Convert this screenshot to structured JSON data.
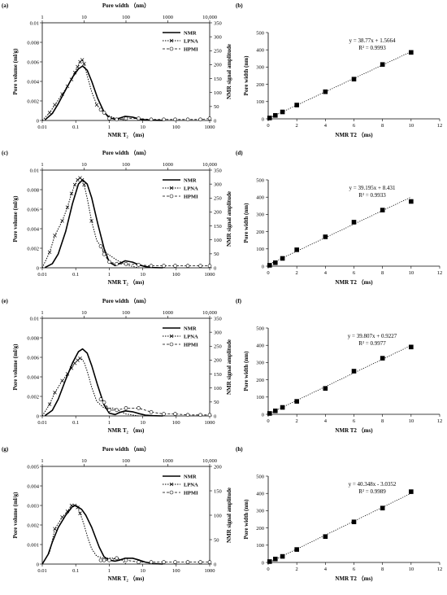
{
  "chart_data": [
    {
      "panel": "(a)",
      "type": "line",
      "top_axis": {
        "label": "Pore width （nm）",
        "ticks": [
          "1",
          "10",
          "100",
          "1000",
          "10,000"
        ],
        "log": true
      },
      "x_axis": {
        "label": "NMR T₂ （ms)",
        "ticks": [
          "0.01",
          "0.1",
          "1",
          "10",
          "100",
          "1000"
        ],
        "log": true,
        "range": [
          0.01,
          1000
        ]
      },
      "y_axis": {
        "label": "Pore volume (ml/g)",
        "ticks": [
          "0",
          "0.002",
          "0.004",
          "0.006",
          "0.008",
          "0.01"
        ],
        "range": [
          0,
          0.01
        ]
      },
      "y2_axis": {
        "label": "NMR signal amplitude",
        "ticks": [
          "0",
          "50",
          "100",
          "150",
          "200",
          "250",
          "300",
          "350"
        ],
        "range": [
          0,
          350
        ]
      },
      "legend": [
        {
          "name": "NMR",
          "style": "solid"
        },
        {
          "name": "LPNA",
          "style": "dotted-x"
        },
        {
          "name": "HPMI",
          "style": "dashed-circle"
        }
      ],
      "series": [
        {
          "name": "NMR",
          "axis": "right",
          "x": [
            0.012,
            0.02,
            0.03,
            0.05,
            0.08,
            0.12,
            0.16,
            0.22,
            0.3,
            0.45,
            0.7,
            1.0,
            1.5,
            2.0,
            3.0,
            5,
            8,
            12,
            20,
            40
          ],
          "values": [
            2,
            25,
            60,
            110,
            155,
            185,
            195,
            180,
            140,
            80,
            30,
            10,
            5,
            8,
            15,
            12,
            5,
            2,
            1,
            0
          ]
        },
        {
          "name": "LPNA",
          "axis": "left",
          "x": [
            1,
            1.5,
            2,
            3,
            4,
            5,
            6,
            7,
            8,
            9,
            10,
            12,
            15,
            20,
            30,
            50,
            80,
            100
          ],
          "values": [
            0,
            0.0008,
            0.0016,
            0.0027,
            0.0035,
            0.0042,
            0.0049,
            0.0055,
            0.006,
            0.0062,
            0.0058,
            0.0045,
            0.003,
            0.0016,
            0.0007,
            0.0003,
            0.0001,
            0
          ],
          "markers": [
            0.0008,
            0.0016,
            0.0027,
            0.0035,
            0.0042,
            0.0049,
            0.0055,
            0.006,
            0.0062,
            0.0058
          ]
        },
        {
          "name": "HPMI",
          "axis": "left",
          "x": [
            25,
            30,
            40,
            60,
            100,
            200,
            400,
            800,
            1500,
            3000,
            6000,
            10000
          ],
          "values": [
            0.0011,
            0.0008,
            0.0002,
            0.0001,
            0.0002,
            0.0002,
            0.0001,
            0.0001,
            0.0001,
            0.0001,
            0.0001,
            0.0002
          ]
        }
      ]
    },
    {
      "panel": "(b)",
      "type": "scatter",
      "x_axis": {
        "label": "NMR T2 （ms)",
        "ticks": [
          "0",
          "2",
          "4",
          "6",
          "8",
          "10",
          "12"
        ],
        "range": [
          0,
          12
        ]
      },
      "y_axis": {
        "label": "Pore width (nm)",
        "ticks": [
          "0",
          "100",
          "200",
          "300",
          "400",
          "500"
        ],
        "range": [
          0,
          500
        ]
      },
      "equation": "y = 38.77x + 1.5664",
      "r2": "R² = 0.9993",
      "slope": 38.77,
      "intercept": 1.5664,
      "points": [
        [
          0.1,
          5
        ],
        [
          0.5,
          20
        ],
        [
          1,
          40
        ],
        [
          2,
          80
        ],
        [
          4,
          157
        ],
        [
          6,
          230
        ],
        [
          8,
          315
        ],
        [
          10,
          385
        ]
      ]
    },
    {
      "panel": "(c)",
      "type": "line",
      "top_axis": {
        "label": "Pore width （nm）",
        "ticks": [
          "1",
          "10",
          "100",
          "1000",
          "10,000"
        ],
        "log": true
      },
      "x_axis": {
        "label": "NMR T₂ （ms)",
        "ticks": [
          "0.01",
          "0.1",
          "1",
          "10",
          "100",
          "1000"
        ],
        "log": true,
        "range": [
          0.01,
          1000
        ]
      },
      "y_axis": {
        "label": "Pore volume (ml/g)",
        "ticks": [
          "0",
          "0.002",
          "0.004",
          "0.006",
          "0.008",
          "0.01"
        ],
        "range": [
          0,
          0.01
        ]
      },
      "y2_axis": {
        "label": "NMR signal amplitude",
        "ticks": [
          "0",
          "50",
          "100",
          "150",
          "200",
          "250",
          "300",
          "350"
        ],
        "range": [
          0,
          350
        ]
      },
      "legend": [
        {
          "name": "NMR",
          "style": "solid"
        },
        {
          "name": "LPNA",
          "style": "dotted-x"
        },
        {
          "name": "HPMI",
          "style": "dashed-circle"
        }
      ],
      "series": [
        {
          "name": "NMR",
          "axis": "right",
          "x": [
            0.012,
            0.02,
            0.03,
            0.05,
            0.08,
            0.12,
            0.16,
            0.22,
            0.3,
            0.45,
            0.7,
            1.0,
            1.5,
            2.0,
            3.0,
            5,
            8,
            12,
            20,
            40
          ],
          "values": [
            1,
            15,
            50,
            130,
            230,
            300,
            315,
            300,
            250,
            160,
            70,
            20,
            8,
            15,
            25,
            20,
            10,
            4,
            1,
            0
          ]
        },
        {
          "name": "LPNA",
          "axis": "left",
          "x": [
            1,
            1.5,
            2,
            3,
            4,
            5,
            6,
            7,
            8,
            9,
            10,
            12,
            15,
            20,
            30,
            40,
            60,
            100,
            200
          ],
          "values": [
            0,
            0.0016,
            0.0033,
            0.0048,
            0.0062,
            0.0076,
            0.0085,
            0.009,
            0.0092,
            0.009,
            0.0085,
            0.007,
            0.0048,
            0.0028,
            0.0017,
            0.0013,
            0.0008,
            0.0003,
            0
          ],
          "markers": [
            0.0016,
            0.0033,
            0.0048,
            0.0062,
            0.0076,
            0.0085,
            0.009,
            0.0092,
            0.009,
            0.0085
          ]
        },
        {
          "name": "HPMI",
          "axis": "left",
          "x": [
            25,
            30,
            40,
            60,
            100,
            200,
            400,
            800,
            1500,
            3000,
            6000,
            10000
          ],
          "values": [
            0.0022,
            0.0014,
            0.0006,
            0.0004,
            0.0004,
            0.0003,
            0.0002,
            0.0002,
            0.0002,
            0.0002,
            0.0002,
            0.0002
          ]
        }
      ]
    },
    {
      "panel": "(d)",
      "type": "scatter",
      "x_axis": {
        "label": "NMR T2 （ms)",
        "ticks": [
          "0",
          "2",
          "4",
          "6",
          "8",
          "10",
          "12"
        ],
        "range": [
          0,
          12
        ]
      },
      "y_axis": {
        "label": "Pore width (nm)",
        "ticks": [
          "0",
          "100",
          "200",
          "300",
          "400",
          "500"
        ],
        "range": [
          0,
          500
        ]
      },
      "equation": "y = 39.195x + 8.431",
      "r2": "R² = 0.9933",
      "slope": 39.195,
      "intercept": 8.431,
      "points": [
        [
          0.1,
          5
        ],
        [
          0.5,
          20
        ],
        [
          1,
          45
        ],
        [
          2,
          95
        ],
        [
          4,
          170
        ],
        [
          6,
          255
        ],
        [
          8,
          325
        ],
        [
          10,
          375
        ]
      ]
    },
    {
      "panel": "(e)",
      "type": "line",
      "top_axis": {
        "label": "Pore width （nm）",
        "ticks": [
          "1",
          "10",
          "100",
          "1000",
          "10,000"
        ],
        "log": true
      },
      "x_axis": {
        "label": "NMR T₂ （ms)",
        "ticks": [
          "0.01",
          "0.1",
          "1",
          "10",
          "100",
          "1000"
        ],
        "log": true,
        "range": [
          0.01,
          1000
        ]
      },
      "y_axis": {
        "label": "Pore volume (ml/g)",
        "ticks": [
          "0",
          "0.002",
          "0.004",
          "0.006",
          "0.008",
          "0.01"
        ],
        "range": [
          0,
          0.01
        ]
      },
      "y2_axis": {
        "label": "NMR signal amplitude",
        "ticks": [
          "0",
          "50",
          "100",
          "150",
          "200",
          "250",
          "300",
          "350"
        ],
        "range": [
          0,
          350
        ]
      },
      "legend": [
        {
          "name": "NMR",
          "style": "solid"
        },
        {
          "name": "LPNA",
          "style": "dotted-x"
        },
        {
          "name": "HPMI",
          "style": "dashed-circle"
        }
      ],
      "series": [
        {
          "name": "NMR",
          "axis": "right",
          "x": [
            0.012,
            0.02,
            0.03,
            0.05,
            0.08,
            0.12,
            0.16,
            0.22,
            0.3,
            0.45,
            0.7,
            1.0,
            1.5,
            2.0,
            3.0,
            5,
            8,
            12,
            20,
            40
          ],
          "values": [
            1,
            20,
            60,
            130,
            190,
            230,
            240,
            225,
            180,
            110,
            40,
            10,
            5,
            12,
            18,
            15,
            8,
            3,
            1,
            0
          ]
        },
        {
          "name": "LPNA",
          "axis": "left",
          "x": [
            1,
            1.5,
            2,
            3,
            4,
            5,
            6,
            7,
            8,
            9,
            10,
            12,
            15,
            20,
            30,
            50,
            80,
            100,
            200
          ],
          "values": [
            0,
            0.0012,
            0.0024,
            0.0036,
            0.0043,
            0.0049,
            0.0054,
            0.0057,
            0.0059,
            0.0058,
            0.0055,
            0.0045,
            0.003,
            0.0015,
            0.0008,
            0.0008,
            0.0004,
            0.0002,
            0
          ],
          "markers": [
            0.0012,
            0.0024,
            0.0036,
            0.0043,
            0.0049,
            0.0054,
            0.0057,
            0.0059
          ]
        },
        {
          "name": "HPMI",
          "axis": "left",
          "x": [
            25,
            30,
            40,
            60,
            100,
            200,
            400,
            800,
            1500,
            3000,
            6000,
            10000
          ],
          "values": [
            0.0017,
            0.0014,
            0.0006,
            0.0006,
            0.0008,
            0.0008,
            0.0004,
            0.0002,
            0.0002,
            0.0001,
            0.0001,
            0.0001
          ]
        }
      ]
    },
    {
      "panel": "(f)",
      "type": "scatter",
      "x_axis": {
        "label": "NMR T2 （ms)",
        "ticks": [
          "0",
          "2",
          "4",
          "6",
          "8",
          "10",
          "12"
        ],
        "range": [
          0,
          12
        ]
      },
      "y_axis": {
        "label": "Pore width (nm)",
        "ticks": [
          "0",
          "100",
          "200",
          "300",
          "400",
          "500"
        ],
        "range": [
          0,
          500
        ]
      },
      "equation": "y = 39.807x + 0.9227",
      "r2": "R² = 0.9977",
      "slope": 39.807,
      "intercept": 0.9227,
      "points": [
        [
          0.1,
          5
        ],
        [
          0.5,
          20
        ],
        [
          1,
          40
        ],
        [
          2,
          75
        ],
        [
          4,
          150
        ],
        [
          6,
          250
        ],
        [
          8,
          325
        ],
        [
          10,
          390
        ]
      ]
    },
    {
      "panel": "(g)",
      "type": "line",
      "top_axis": {
        "label": "Pore width （nm）",
        "ticks": [
          "1",
          "10",
          "100",
          "1000",
          "10,000"
        ],
        "log": true
      },
      "x_axis": {
        "label": "NMR T₂ （ms)",
        "ticks": [
          "0.01",
          "0.1",
          "1",
          "10",
          "100",
          "1000"
        ],
        "log": true,
        "range": [
          0.01,
          1000
        ]
      },
      "y_axis": {
        "label": "Pore volume (ml/g)",
        "ticks": [
          "0",
          "0.001",
          "0.002",
          "0.003",
          "0.004",
          "0.005"
        ],
        "range": [
          0,
          0.005
        ]
      },
      "y2_axis": {
        "label": "NMR signal amplitude",
        "ticks": [
          "0",
          "50",
          "100",
          "150",
          "200"
        ],
        "range": [
          0,
          200
        ]
      },
      "legend": [
        {
          "name": "NMR",
          "style": "solid"
        },
        {
          "name": "LPNA",
          "style": "dotted-x"
        },
        {
          "name": "HPMI",
          "style": "dashed-circle"
        }
      ],
      "series": [
        {
          "name": "NMR",
          "axis": "right",
          "x": [
            0.01,
            0.015,
            0.02,
            0.03,
            0.05,
            0.08,
            0.1,
            0.15,
            0.2,
            0.3,
            0.5,
            0.7,
            1.0,
            1.5,
            2,
            3,
            5,
            8,
            12,
            20,
            40
          ],
          "values": [
            0,
            20,
            45,
            75,
            100,
            118,
            120,
            112,
            100,
            75,
            35,
            15,
            8,
            6,
            8,
            12,
            12,
            8,
            4,
            1,
            0
          ]
        },
        {
          "name": "LPNA",
          "axis": "left",
          "x": [
            1,
            1.5,
            2,
            3,
            4,
            5,
            6,
            7,
            8,
            9,
            10,
            12,
            15,
            20,
            30,
            50,
            80,
            100
          ],
          "values": [
            0,
            0.0006,
            0.0018,
            0.0024,
            0.0027,
            0.003,
            0.003,
            0.0029,
            0.0026,
            0.0023,
            0.002,
            0.0014,
            0.0008,
            0.0004,
            0.0003,
            0.0003,
            0.0002,
            0
          ],
          "markers": [
            0.0018,
            0.0024,
            0.0027,
            0.003,
            0.0029,
            0.0026
          ]
        },
        {
          "name": "HPMI",
          "axis": "left",
          "x": [
            25,
            30,
            40,
            60,
            100,
            200,
            400,
            800,
            1500,
            3000,
            6000,
            10000
          ],
          "values": [
            0.0002,
            0.0002,
            0.0002,
            0.0003,
            0.0002,
            0.0001,
            0.0001,
            0.0001,
            0.0001,
            0.0001,
            0.0001,
            0.0001
          ]
        }
      ]
    },
    {
      "panel": "(h)",
      "type": "scatter",
      "x_axis": {
        "label": "NMR T2 （ms)",
        "ticks": [
          "0",
          "2",
          "4",
          "6",
          "8",
          "10",
          "12"
        ],
        "range": [
          0,
          12
        ]
      },
      "y_axis": {
        "label": "Pore width (nm)",
        "ticks": [
          "0",
          "100",
          "200",
          "300",
          "400",
          "500"
        ],
        "range": [
          0,
          500
        ]
      },
      "equation": "y = 40.348x - 3.0352",
      "r2": "R² = 0.9989",
      "slope": 40.348,
      "intercept": -3.0352,
      "points": [
        [
          0.1,
          5
        ],
        [
          0.5,
          20
        ],
        [
          1,
          35
        ],
        [
          2,
          75
        ],
        [
          4,
          150
        ],
        [
          6,
          235
        ],
        [
          8,
          315
        ],
        [
          10,
          410
        ]
      ]
    }
  ]
}
